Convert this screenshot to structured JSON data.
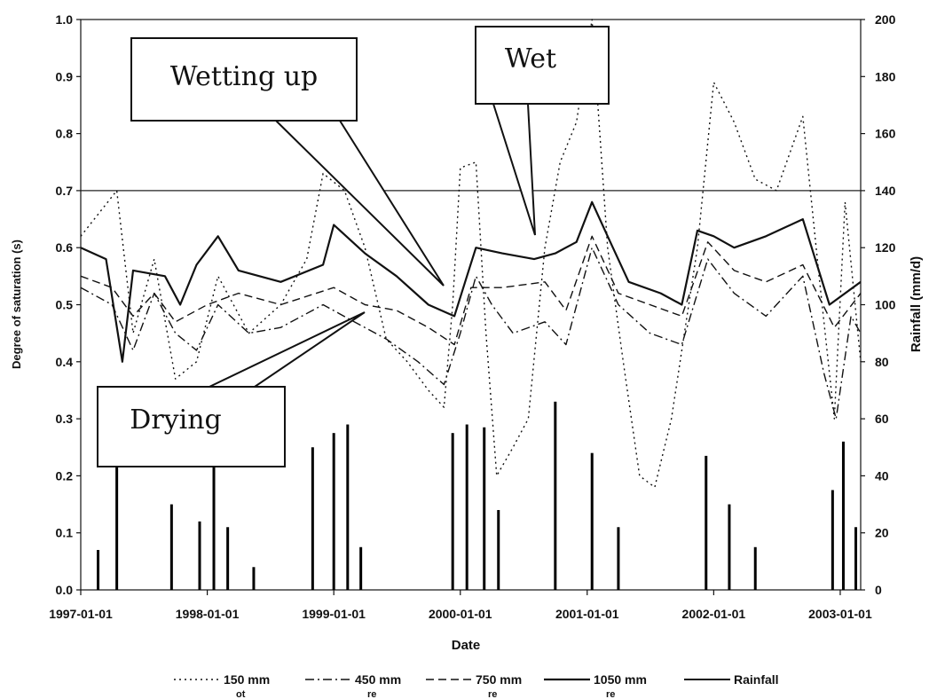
{
  "chart_data": {
    "type": "line",
    "xlabel": "Date",
    "ylabel_left": "Degree of saturation (s)",
    "ylabel_right": "Rainfall (mm/d)",
    "xlim": [
      "1997-01-01",
      "2003-03-01"
    ],
    "ylim_left": [
      0,
      1
    ],
    "ylim_right": [
      0,
      200
    ],
    "x_ticks": [
      "1997-01-01",
      "1998-01-01",
      "1999-01-01",
      "2000-01-01",
      "2001-01-01",
      "2002-01-01",
      "2003-01-01"
    ],
    "y_ticks_left": [
      "0.0",
      "0.1",
      "0.2",
      "0.3",
      "0.4",
      "0.5",
      "0.6",
      "0.7",
      "0.8",
      "0.9",
      "1.0"
    ],
    "y_ticks_right": [
      "0",
      "20",
      "40",
      "60",
      "80",
      "100",
      "120",
      "140",
      "160",
      "180",
      "200"
    ],
    "reference_line": {
      "axis": "left",
      "value": 0.7
    },
    "legend_position": "bottom",
    "legend_sublabels": [
      "ot",
      "re",
      "re",
      "re"
    ],
    "annotations": [
      {
        "text": "Wetting up",
        "points_to": "2000-01-01"
      },
      {
        "text": "Wet",
        "points_to": "2000-09-15"
      },
      {
        "text": "Drying",
        "points_to": "1999-04-01"
      }
    ],
    "series": [
      {
        "name": "150 mm",
        "axis": "left",
        "style": "dotted",
        "points": [
          [
            "1997-01-01",
            0.62
          ],
          [
            "1997-04-15",
            0.7
          ],
          [
            "1997-06-01",
            0.45
          ],
          [
            "1997-08-01",
            0.58
          ],
          [
            "1997-10-01",
            0.37
          ],
          [
            "1997-12-01",
            0.4
          ],
          [
            "1998-02-01",
            0.55
          ],
          [
            "1998-05-01",
            0.45
          ],
          [
            "1998-08-01",
            0.5
          ],
          [
            "1998-10-15",
            0.58
          ],
          [
            "1998-12-01",
            0.73
          ],
          [
            "1999-02-01",
            0.7
          ],
          [
            "1999-04-01",
            0.6
          ],
          [
            "1999-06-01",
            0.44
          ],
          [
            "1999-08-01",
            0.4
          ],
          [
            "1999-10-01",
            0.35
          ],
          [
            "1999-11-15",
            0.32
          ],
          [
            "1999-12-10",
            0.5
          ],
          [
            "2000-01-01",
            0.74
          ],
          [
            "2000-02-15",
            0.75
          ],
          [
            "2000-03-15",
            0.45
          ],
          [
            "2000-04-15",
            0.2
          ],
          [
            "2000-06-01",
            0.25
          ],
          [
            "2000-07-15",
            0.3
          ],
          [
            "2000-09-01",
            0.6
          ],
          [
            "2000-10-15",
            0.75
          ],
          [
            "2000-12-01",
            0.82
          ],
          [
            "2001-01-15",
            1.0
          ],
          [
            "2001-03-01",
            0.6
          ],
          [
            "2001-04-15",
            0.4
          ],
          [
            "2001-06-01",
            0.2
          ],
          [
            "2001-07-15",
            0.18
          ],
          [
            "2001-09-01",
            0.3
          ],
          [
            "2001-11-15",
            0.6
          ],
          [
            "2002-01-01",
            0.89
          ],
          [
            "2002-03-01",
            0.82
          ],
          [
            "2002-05-01",
            0.72
          ],
          [
            "2002-07-01",
            0.7
          ],
          [
            "2002-09-15",
            0.83
          ],
          [
            "2002-11-01",
            0.55
          ],
          [
            "2002-12-15",
            0.3
          ],
          [
            "2003-01-15",
            0.68
          ],
          [
            "2003-03-01",
            0.4
          ]
        ]
      },
      {
        "name": "450 mm",
        "axis": "left",
        "style": "dash-dot",
        "points": [
          [
            "1997-01-01",
            0.53
          ],
          [
            "1997-04-01",
            0.5
          ],
          [
            "1997-06-01",
            0.42
          ],
          [
            "1997-08-01",
            0.52
          ],
          [
            "1997-10-01",
            0.45
          ],
          [
            "1997-12-01",
            0.42
          ],
          [
            "1998-02-01",
            0.5
          ],
          [
            "1998-05-01",
            0.45
          ],
          [
            "1998-08-01",
            0.46
          ],
          [
            "1998-12-01",
            0.5
          ],
          [
            "1999-03-01",
            0.47
          ],
          [
            "1999-06-01",
            0.44
          ],
          [
            "1999-09-01",
            0.4
          ],
          [
            "1999-11-15",
            0.36
          ],
          [
            "2000-01-01",
            0.45
          ],
          [
            "2000-02-15",
            0.55
          ],
          [
            "2000-04-01",
            0.5
          ],
          [
            "2000-06-01",
            0.45
          ],
          [
            "2000-09-01",
            0.47
          ],
          [
            "2000-11-01",
            0.43
          ],
          [
            "2001-01-15",
            0.6
          ],
          [
            "2001-04-01",
            0.5
          ],
          [
            "2001-07-01",
            0.45
          ],
          [
            "2001-10-01",
            0.43
          ],
          [
            "2001-12-15",
            0.58
          ],
          [
            "2002-03-01",
            0.52
          ],
          [
            "2002-06-01",
            0.48
          ],
          [
            "2002-09-15",
            0.55
          ],
          [
            "2002-11-15",
            0.38
          ],
          [
            "2002-12-20",
            0.3
          ],
          [
            "2003-02-01",
            0.48
          ],
          [
            "2003-03-01",
            0.45
          ]
        ]
      },
      {
        "name": "750 mm",
        "axis": "left",
        "style": "dashed",
        "points": [
          [
            "1997-01-01",
            0.55
          ],
          [
            "1997-04-01",
            0.53
          ],
          [
            "1997-06-01",
            0.48
          ],
          [
            "1997-08-01",
            0.52
          ],
          [
            "1997-10-01",
            0.47
          ],
          [
            "1998-01-01",
            0.5
          ],
          [
            "1998-04-01",
            0.52
          ],
          [
            "1998-08-01",
            0.5
          ],
          [
            "1999-01-01",
            0.53
          ],
          [
            "1999-04-01",
            0.5
          ],
          [
            "1999-07-01",
            0.49
          ],
          [
            "1999-10-01",
            0.46
          ],
          [
            "1999-12-15",
            0.43
          ],
          [
            "2000-02-01",
            0.53
          ],
          [
            "2000-05-01",
            0.53
          ],
          [
            "2000-09-01",
            0.54
          ],
          [
            "2000-11-01",
            0.49
          ],
          [
            "2001-01-15",
            0.62
          ],
          [
            "2001-04-01",
            0.52
          ],
          [
            "2001-07-01",
            0.5
          ],
          [
            "2001-10-01",
            0.48
          ],
          [
            "2001-12-15",
            0.61
          ],
          [
            "2002-03-01",
            0.56
          ],
          [
            "2002-06-01",
            0.54
          ],
          [
            "2002-09-15",
            0.57
          ],
          [
            "2002-12-15",
            0.46
          ],
          [
            "2003-03-01",
            0.52
          ]
        ]
      },
      {
        "name": "1050 mm",
        "axis": "left",
        "style": "solid",
        "points": [
          [
            "1997-01-01",
            0.6
          ],
          [
            "1997-03-15",
            0.58
          ],
          [
            "1997-05-01",
            0.4
          ],
          [
            "1997-06-01",
            0.56
          ],
          [
            "1997-09-01",
            0.55
          ],
          [
            "1997-10-15",
            0.5
          ],
          [
            "1997-12-01",
            0.57
          ],
          [
            "1998-02-01",
            0.62
          ],
          [
            "1998-04-01",
            0.56
          ],
          [
            "1998-08-01",
            0.54
          ],
          [
            "1998-12-01",
            0.57
          ],
          [
            "1999-01-01",
            0.64
          ],
          [
            "1999-04-01",
            0.59
          ],
          [
            "1999-07-01",
            0.55
          ],
          [
            "1999-10-01",
            0.5
          ],
          [
            "1999-12-15",
            0.48
          ],
          [
            "2000-01-15",
            0.54
          ],
          [
            "2000-02-15",
            0.6
          ],
          [
            "2000-05-01",
            0.59
          ],
          [
            "2000-08-01",
            0.58
          ],
          [
            "2000-10-01",
            0.59
          ],
          [
            "2000-12-01",
            0.61
          ],
          [
            "2001-01-15",
            0.68
          ],
          [
            "2001-03-01",
            0.62
          ],
          [
            "2001-05-01",
            0.54
          ],
          [
            "2001-08-01",
            0.52
          ],
          [
            "2001-10-01",
            0.5
          ],
          [
            "2001-11-15",
            0.63
          ],
          [
            "2002-01-01",
            0.62
          ],
          [
            "2002-03-01",
            0.6
          ],
          [
            "2002-06-01",
            0.62
          ],
          [
            "2002-09-15",
            0.65
          ],
          [
            "2002-12-01",
            0.5
          ],
          [
            "2003-03-01",
            0.54
          ]
        ]
      },
      {
        "name": "Rainfall",
        "axis": "right",
        "style": "bars",
        "points": [
          [
            "1997-02-20",
            14
          ],
          [
            "1997-04-15",
            68
          ],
          [
            "1997-09-20",
            30
          ],
          [
            "1997-12-10",
            24
          ],
          [
            "1998-01-20",
            64
          ],
          [
            "1998-03-01",
            22
          ],
          [
            "1998-05-15",
            8
          ],
          [
            "1998-11-01",
            50
          ],
          [
            "1999-01-01",
            55
          ],
          [
            "1999-02-10",
            58
          ],
          [
            "1999-03-20",
            15
          ],
          [
            "1999-12-10",
            55
          ],
          [
            "2000-01-20",
            58
          ],
          [
            "2000-03-10",
            57
          ],
          [
            "2000-04-20",
            28
          ],
          [
            "2000-10-01",
            66
          ],
          [
            "2001-01-15",
            48
          ],
          [
            "2001-04-01",
            22
          ],
          [
            "2001-12-10",
            47
          ],
          [
            "2002-02-15",
            30
          ],
          [
            "2002-05-01",
            15
          ],
          [
            "2002-12-10",
            35
          ],
          [
            "2003-01-10",
            52
          ],
          [
            "2003-02-15",
            22
          ]
        ]
      }
    ]
  }
}
